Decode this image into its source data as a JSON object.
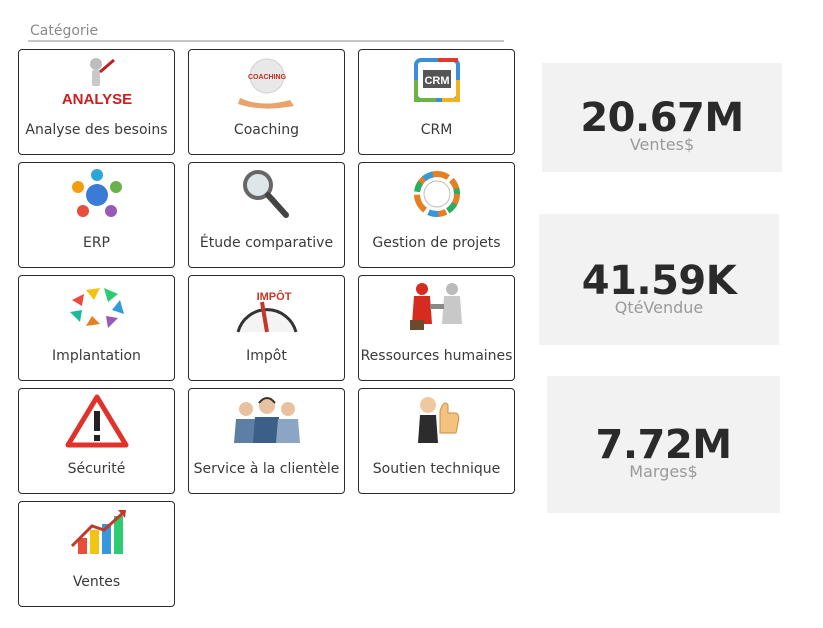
{
  "slicer": {
    "title": "Catégorie",
    "items": [
      {
        "label": "Analyse des besoins",
        "icon": "analysis-icon",
        "image_text": "ANALYSE"
      },
      {
        "label": "Coaching",
        "icon": "coaching-icon",
        "image_text": "COACHING"
      },
      {
        "label": "CRM",
        "icon": "crm-icon",
        "image_text": "CRM"
      },
      {
        "label": "ERP",
        "icon": "erp-icon"
      },
      {
        "label": "Étude comparative",
        "icon": "magnifier-icon"
      },
      {
        "label": "Gestion de projets",
        "icon": "project-cycle-icon"
      },
      {
        "label": "Implantation",
        "icon": "implementation-cycle-icon"
      },
      {
        "label": "Impôt",
        "icon": "tax-gauge-icon",
        "image_text": "IMPÔT"
      },
      {
        "label": "Ressources humaines",
        "icon": "handshake-icon"
      },
      {
        "label": "Sécurité",
        "icon": "warning-icon"
      },
      {
        "label": "Service à la clientèle",
        "icon": "customer-service-icon"
      },
      {
        "label": "Soutien technique",
        "icon": "thumbs-up-icon"
      },
      {
        "label": "Ventes",
        "icon": "sales-chart-icon"
      }
    ]
  },
  "kpis": [
    {
      "value": "20.67M",
      "caption": "Ventes$"
    },
    {
      "value": "41.59K",
      "caption": "QtéVendue"
    },
    {
      "value": "7.72M",
      "caption": "Marges$"
    }
  ],
  "colors": {
    "tile_border": "#2b2b2b",
    "kpi_bg": "#f2f2f2",
    "kpi_value": "#2a2a2a",
    "kpi_caption": "#9a9a9a"
  }
}
